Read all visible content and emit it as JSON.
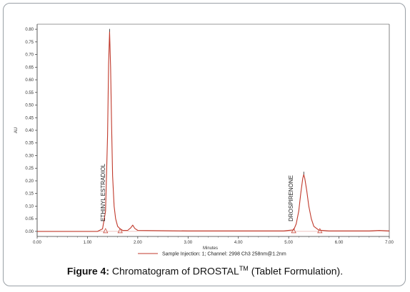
{
  "chart_data": {
    "type": "line",
    "xlabel": "Minutes",
    "ylabel": "AU",
    "xlim": [
      0.0,
      7.0
    ],
    "ylim": [
      -0.02,
      0.82
    ],
    "x_ticks": [
      "0.00",
      "1.00",
      "2.00",
      "3.00",
      "4.00",
      "5.00",
      "6.00",
      "7.00"
    ],
    "y_ticks": [
      "0.00",
      "0.05",
      "0.10",
      "0.15",
      "0.20",
      "0.25",
      "0.30",
      "0.35",
      "0.40",
      "0.45",
      "0.50",
      "0.55",
      "0.60",
      "0.65",
      "0.70",
      "0.75",
      "0.80"
    ],
    "grid": false,
    "series": [
      {
        "name": "Sample Injection: 1; Channel: 2998 Ch3 258nm@1.2nm",
        "color": "#c0392b",
        "x": [
          0.0,
          1.2,
          1.3,
          1.36,
          1.4,
          1.42,
          1.44,
          1.46,
          1.48,
          1.5,
          1.53,
          1.56,
          1.6,
          1.65,
          1.7,
          1.8,
          1.86,
          1.9,
          1.94,
          2.0,
          3.0,
          4.0,
          4.9,
          5.1,
          5.15,
          5.2,
          5.24,
          5.28,
          5.3,
          5.32,
          5.36,
          5.4,
          5.45,
          5.5,
          5.6,
          5.8,
          6.6,
          6.8,
          7.0
        ],
        "y": [
          0.0,
          0.0,
          0.01,
          0.08,
          0.38,
          0.66,
          0.79,
          0.65,
          0.42,
          0.22,
          0.1,
          0.05,
          0.02,
          0.01,
          0.004,
          0.004,
          0.014,
          0.025,
          0.012,
          0.004,
          0.002,
          0.002,
          0.002,
          0.006,
          0.03,
          0.08,
          0.15,
          0.21,
          0.225,
          0.21,
          0.16,
          0.1,
          0.05,
          0.02,
          0.005,
          0.002,
          0.002,
          0.004,
          0.002
        ]
      }
    ],
    "peaks": [
      {
        "label": "ETHINYL ESTRADIOL",
        "x": 1.44,
        "y": 0.79,
        "start_x": 1.36,
        "end_x": 1.65
      },
      {
        "label": "DROSPIRENONE",
        "x": 5.3,
        "y": 0.225,
        "start_x": 5.1,
        "end_x": 5.62
      }
    ],
    "legend": "bottom-center"
  },
  "caption": {
    "bold": "Figure 4:",
    "text_before_sup": " Chromatogram of DROSTAL",
    "sup": "TM",
    "text_after_sup": " (Tablet Formulation)."
  }
}
